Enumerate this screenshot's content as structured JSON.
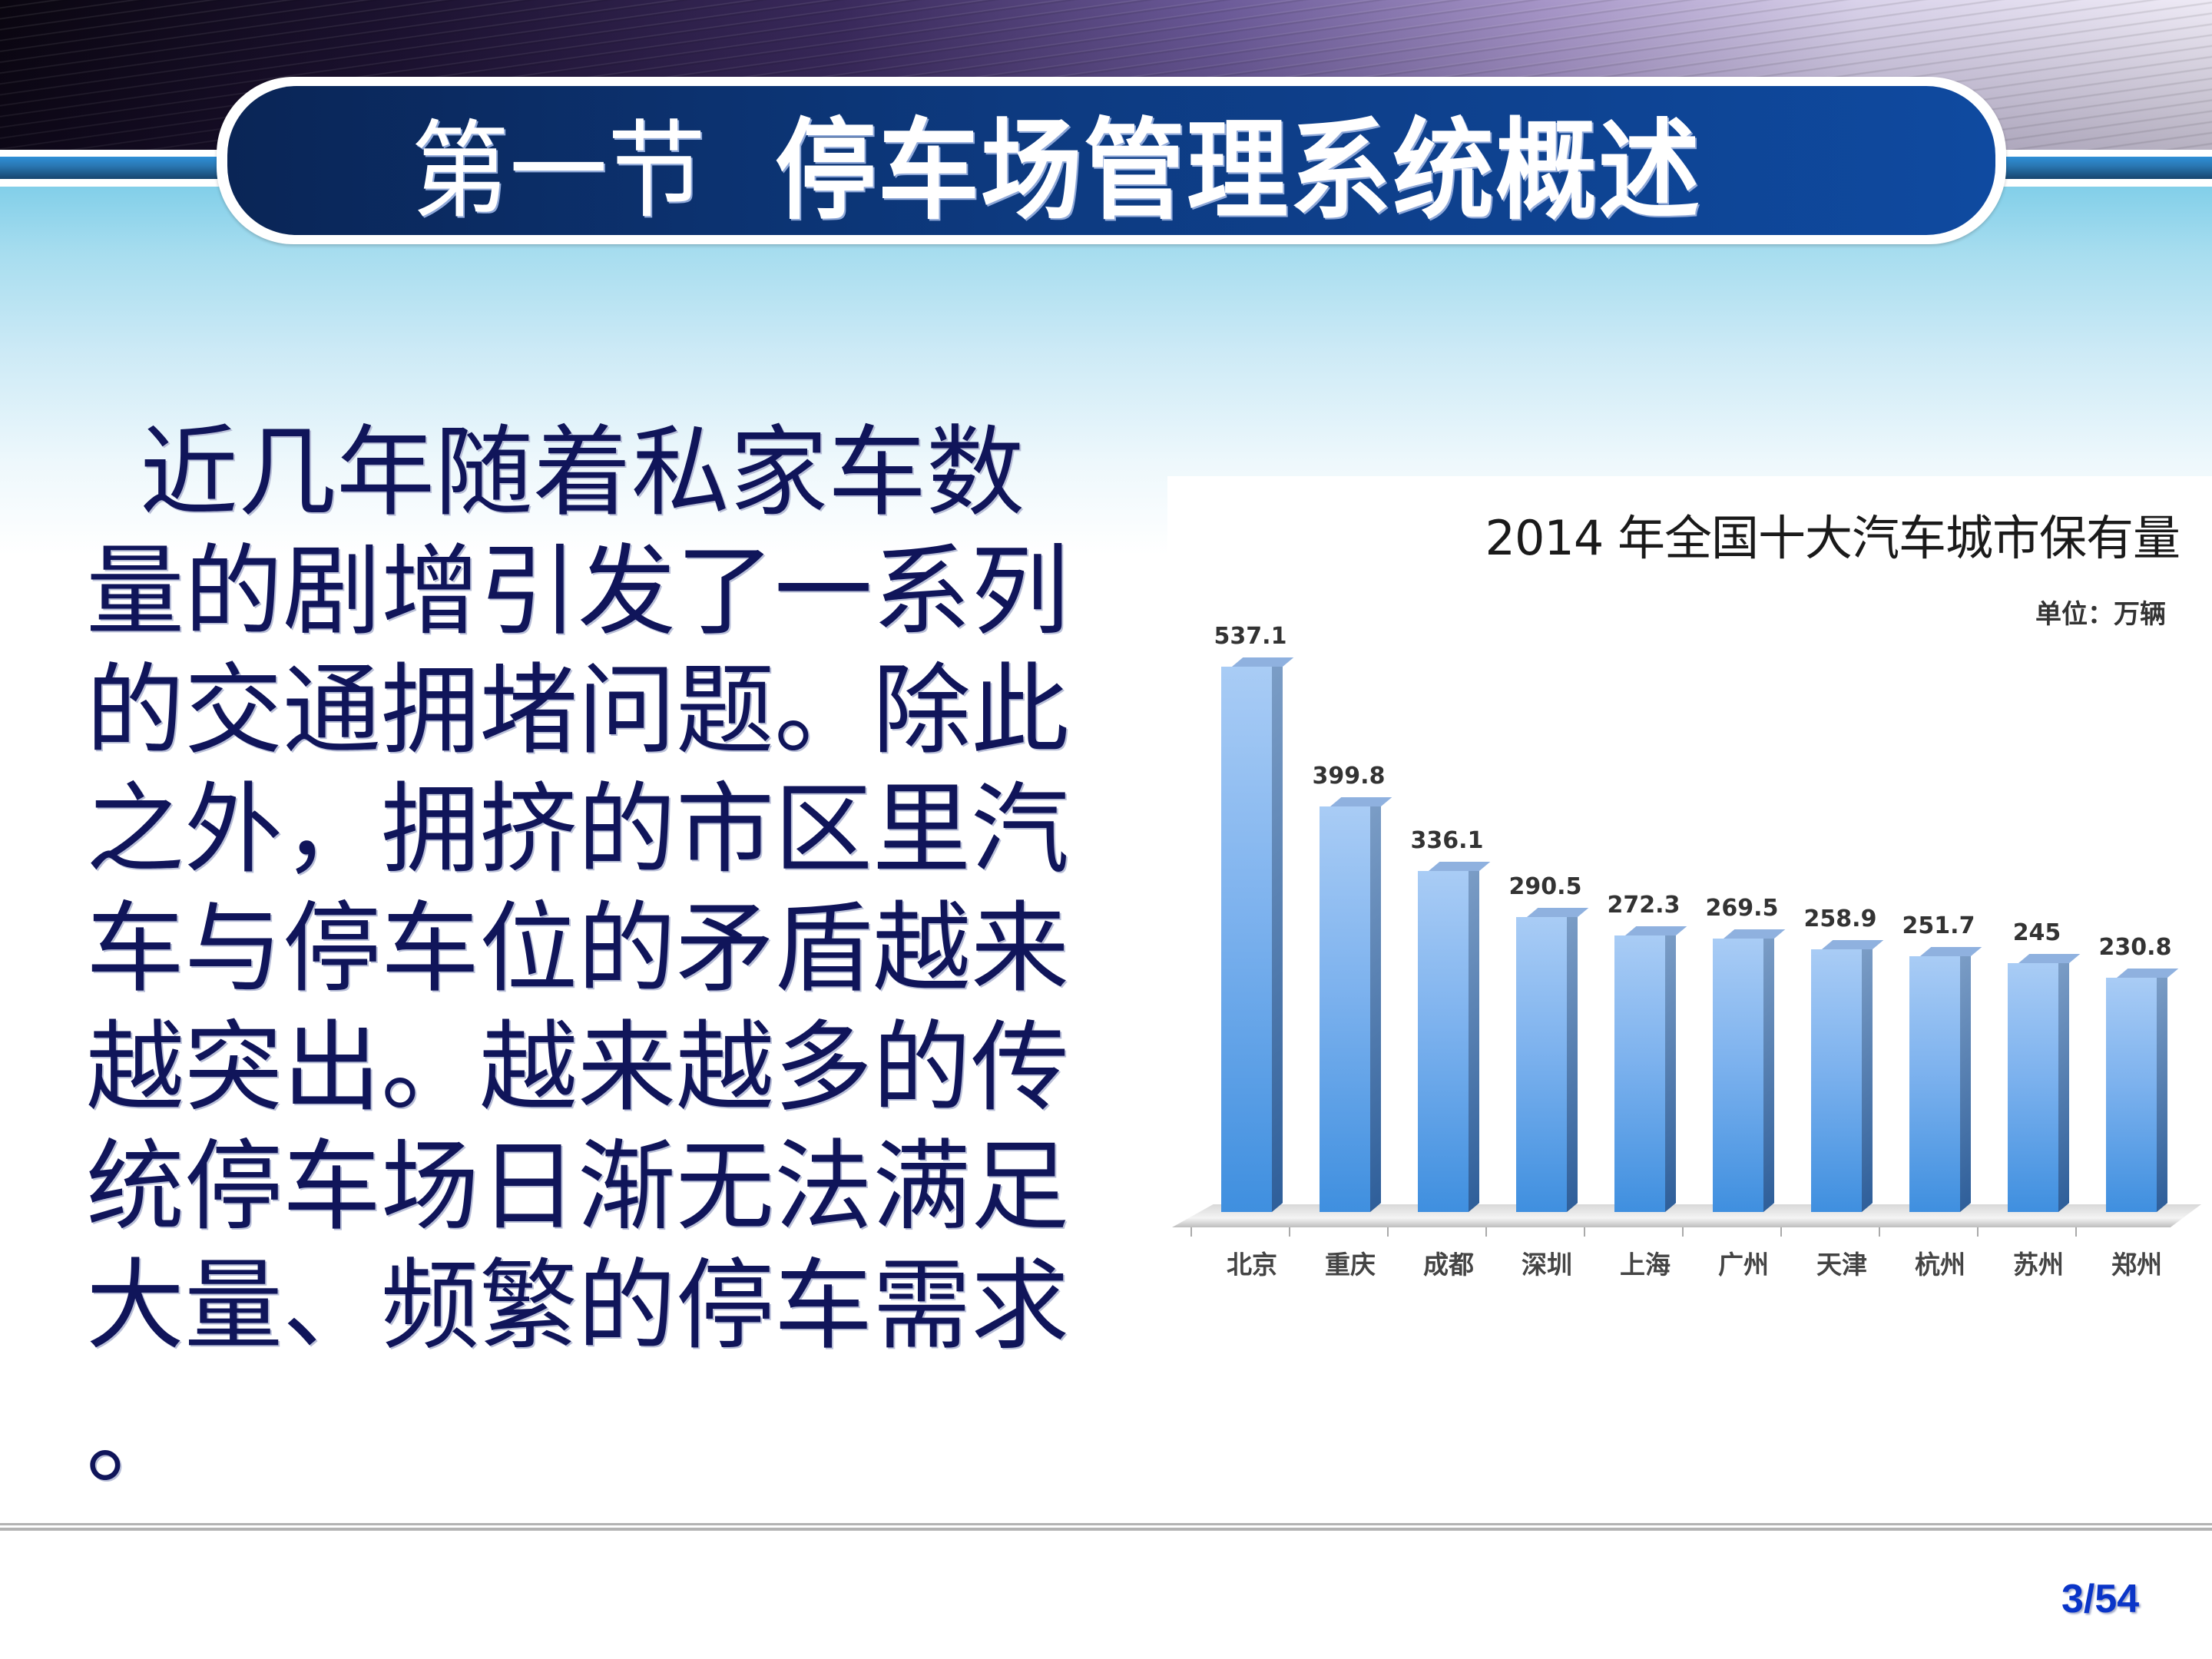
{
  "slide": {
    "title_prefix": "第一节",
    "title_main": "停车场管理系统概述",
    "page_number": "3/54",
    "colors": {
      "title_pill": "#0d3a80",
      "body_text": "#10155a",
      "page_number": "#0a35c8",
      "bar": "#5a9fe6"
    }
  },
  "body": {
    "lines": [
      "近几年随着私家车数",
      "量的剧增引发了一系列",
      "的交通拥堵问题。除此",
      "之外，拥挤的市区里汽",
      "车与停车位的矛盾越来",
      "越突出。越来越多的传",
      "统停车场日渐无法满足",
      "大量、频繁的停车需求",
      "。"
    ]
  },
  "chart": {
    "title": "2014 年全国十大汽车城市保有量",
    "unit": "单位：万辆"
  },
  "chart_data": {
    "type": "bar",
    "title": "2014 年全国十大汽车城市保有量",
    "subtitle": "单位：万辆",
    "categories": [
      "北京",
      "重庆",
      "成都",
      "深圳",
      "上海",
      "广州",
      "天津",
      "杭州",
      "苏州",
      "郑州"
    ],
    "values": [
      537.1,
      399.8,
      336.1,
      290.5,
      272.3,
      269.5,
      258.9,
      251.7,
      245,
      230.8
    ],
    "value_labels": [
      "537.1",
      "399.8",
      "336.1",
      "290.5",
      "272.3",
      "269.5",
      "258.9",
      "251.7",
      "245",
      "230.8"
    ],
    "xlabel": "",
    "ylabel": "",
    "ylim": [
      0,
      560
    ],
    "grid": false,
    "legend": "none",
    "style": "3d-column"
  }
}
